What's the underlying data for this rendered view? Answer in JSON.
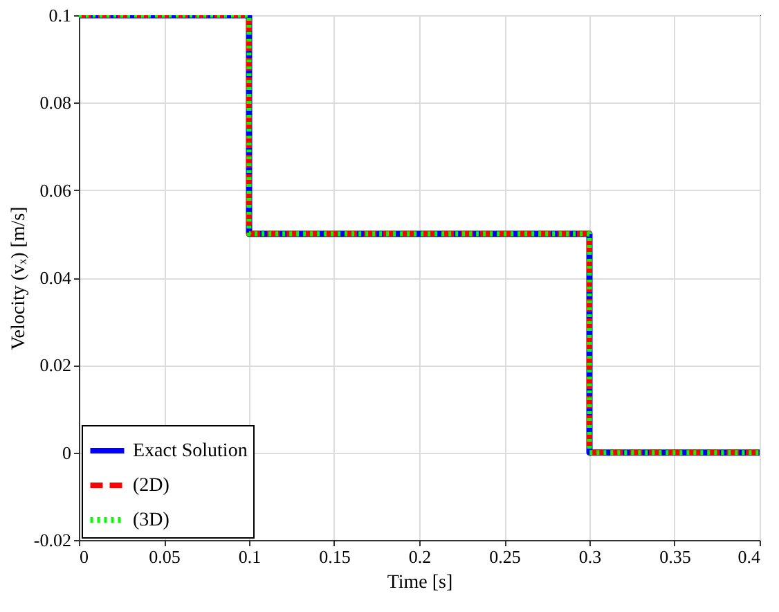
{
  "chart_data": {
    "type": "line",
    "xlabel": "Time [s]",
    "ylabel": "Velocity (vₓ) [m/s]",
    "x": [
      0,
      0.1,
      0.1,
      0.3,
      0.3,
      0.4
    ],
    "series": [
      {
        "name": "Exact Solution",
        "color": "#0000ff",
        "line_style": "solid",
        "values": [
          0.1,
          0.1,
          0.05,
          0.05,
          0,
          0
        ]
      },
      {
        "name": "(2D)",
        "color": "#ff0000",
        "line_style": "dashed",
        "values": [
          0.1,
          0.1,
          0.05,
          0.05,
          0,
          0
        ]
      },
      {
        "name": "(3D)",
        "color": "#00ff00",
        "line_style": "dotted",
        "values": [
          0.1,
          0.1,
          0.05,
          0.05,
          0,
          0
        ]
      }
    ],
    "xlim": [
      0,
      0.4
    ],
    "xticks": [
      0,
      0.05,
      0.1,
      0.15,
      0.2,
      0.25,
      0.3,
      0.35,
      0.4
    ],
    "ylim": [
      -0.02,
      0.1
    ],
    "yticks": [
      -0.02,
      0,
      0.02,
      0.04,
      0.06,
      0.08,
      0.1
    ],
    "grid": true,
    "legend": "bottom left",
    "marker": "none"
  }
}
